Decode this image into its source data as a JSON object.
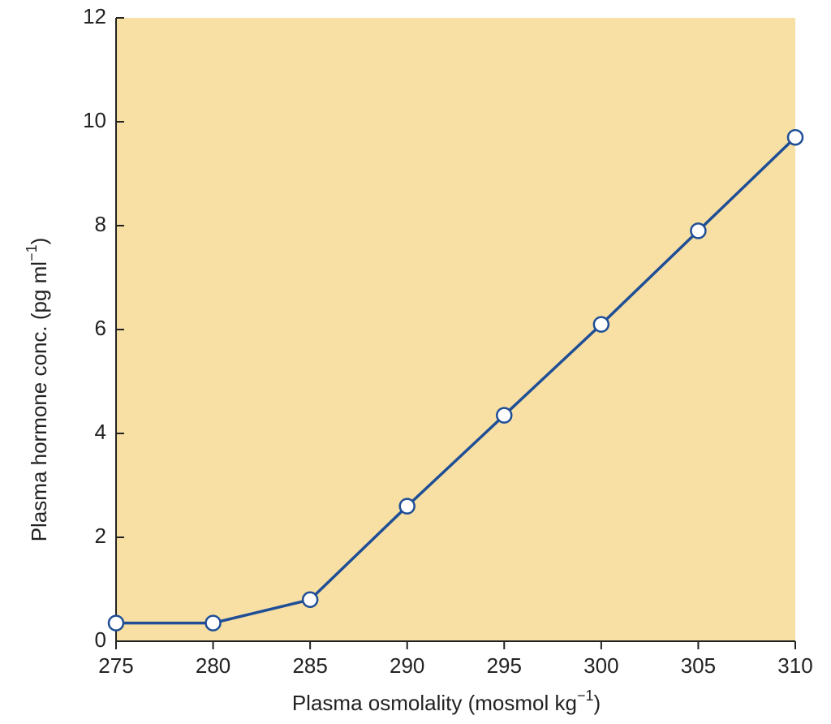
{
  "chart_data": {
    "type": "line",
    "xlabel": "Plasma osmolality (mosmol kg",
    "xlabel_sup": "−1",
    "xlabel_end": ")",
    "ylabel": "Plasma hormone conc.  (pg ml",
    "ylabel_sup": "−1",
    "ylabel_end": ")",
    "x": [
      275,
      280,
      285,
      290,
      295,
      300,
      305,
      310
    ],
    "series": [
      {
        "name": "Plasma hormone",
        "color": "#1f4e96",
        "marker_fill": "#ffffff",
        "values": [
          0.35,
          0.35,
          0.8,
          2.6,
          4.35,
          6.1,
          7.9,
          9.7
        ]
      }
    ],
    "xlim": [
      275,
      310
    ],
    "xticks": [
      275,
      280,
      285,
      290,
      295,
      300,
      305,
      310
    ],
    "ylim": [
      0,
      12
    ],
    "yticks": [
      0,
      2,
      4,
      6,
      8,
      10,
      12
    ],
    "plot_background": "#f8e0a4"
  }
}
